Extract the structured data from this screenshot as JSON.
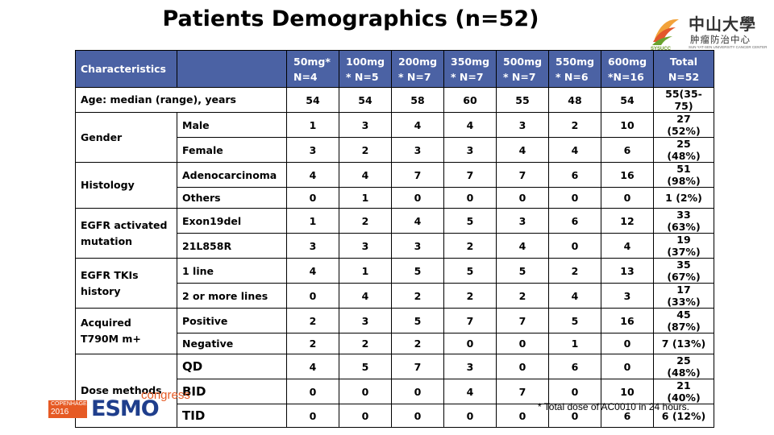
{
  "title": "Patients Demographics (n=52)",
  "logo": {
    "name_cn": "中山大學",
    "sub_cn": "肿瘤防治中心",
    "name_en": "SUN YAT-SEN UNIVERSITY CANCER CENTER",
    "abbr": "SYSUCC"
  },
  "table": {
    "header": {
      "characteristics": "Characteristics",
      "doses": [
        {
          "line1": "50mg*",
          "line2": "N=4"
        },
        {
          "line1": "100mg",
          "line2": "* N=5"
        },
        {
          "line1": "200mg",
          "line2": "* N=7"
        },
        {
          "line1": "350mg",
          "line2": "* N=7"
        },
        {
          "line1": "500mg",
          "line2": "* N=7"
        },
        {
          "line1": "550mg",
          "line2": "* N=6"
        },
        {
          "line1": "600mg",
          "line2": "*N=16"
        }
      ],
      "total": {
        "line1": "Total",
        "line2": "N=52"
      }
    },
    "age": {
      "label": "Age: median (range), years",
      "values": [
        "54",
        "54",
        "58",
        "60",
        "55",
        "48",
        "54"
      ],
      "total": "55(35-75)"
    },
    "groups": [
      {
        "label": "Gender",
        "rows": [
          {
            "label": "Male",
            "values": [
              "1",
              "3",
              "4",
              "4",
              "3",
              "2",
              "10"
            ],
            "total": "27 (52%)"
          },
          {
            "label": "Female",
            "values": [
              "3",
              "2",
              "3",
              "3",
              "4",
              "4",
              "6"
            ],
            "total": "25 (48%)"
          }
        ]
      },
      {
        "label": "Histology",
        "rows": [
          {
            "label": "Adenocarcinoma",
            "values": [
              "4",
              "4",
              "7",
              "7",
              "7",
              "6",
              "16"
            ],
            "total": "51 (98%)"
          },
          {
            "label": "Others",
            "values": [
              "0",
              "1",
              "0",
              "0",
              "0",
              "0",
              "0"
            ],
            "total": "1 (2%)"
          }
        ]
      },
      {
        "label": "EGFR activated mutation",
        "rows": [
          {
            "label": "Exon19del",
            "values": [
              "1",
              "2",
              "4",
              "5",
              "3",
              "6",
              "12"
            ],
            "total": "33 (63%)"
          },
          {
            "label": "21L858R",
            "values": [
              "3",
              "3",
              "3",
              "2",
              "4",
              "0",
              "4"
            ],
            "total": "19 (37%)"
          }
        ]
      },
      {
        "label": "EGFR TKIs history",
        "rows": [
          {
            "label": "1 line",
            "values": [
              "4",
              "1",
              "5",
              "5",
              "5",
              "2",
              "13"
            ],
            "total": "35 (67%)"
          },
          {
            "label": "2 or more lines",
            "values": [
              "0",
              "4",
              "2",
              "2",
              "2",
              "4",
              "3"
            ],
            "total": "17 (33%)"
          }
        ]
      },
      {
        "label": "Acquired T790M m+",
        "rows": [
          {
            "label": "Positive",
            "values": [
              "2",
              "3",
              "5",
              "7",
              "7",
              "5",
              "16"
            ],
            "total": "45 (87%)"
          },
          {
            "label": "Negative",
            "values": [
              "2",
              "2",
              "2",
              "0",
              "0",
              "1",
              "0"
            ],
            "total": "7 (13%)"
          }
        ]
      },
      {
        "label": "Dose methods",
        "rows": [
          {
            "label": "QD",
            "values": [
              "4",
              "5",
              "7",
              "3",
              "0",
              "6",
              "0"
            ],
            "total": "25 (48%)"
          },
          {
            "label": "BID",
            "values": [
              "0",
              "0",
              "0",
              "4",
              "7",
              "0",
              "10"
            ],
            "total": "21 (40%)"
          },
          {
            "label": "TID",
            "values": [
              "0",
              "0",
              "0",
              "0",
              "0",
              "0",
              "6"
            ],
            "total": "6 (12%)"
          }
        ]
      }
    ]
  },
  "footnote": "* Total dose of AC0010 in 24 hours.",
  "esmo": {
    "city": "COPENHAGEN",
    "year": "2016",
    "word": "ESMO",
    "congress": "congress"
  },
  "colors": {
    "header_bg": "#4b62a4",
    "esmo_orange": "#e65a24",
    "esmo_blue": "#1f3e8c"
  }
}
